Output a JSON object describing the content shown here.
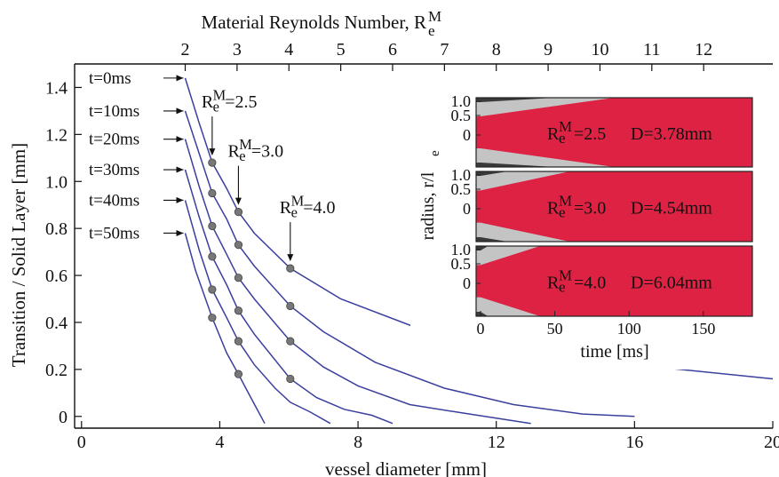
{
  "chart_data": {
    "type": "line",
    "title": "",
    "xlabel": "vessel diameter [mm]",
    "ylabel": "Transition / Solid Layer [mm]",
    "xlim": [
      -0.2,
      20
    ],
    "ylim": [
      -0.05,
      1.5
    ],
    "x_ticks": [
      0,
      4,
      8,
      12,
      16,
      20
    ],
    "x_tick_labels": [
      "0",
      "4",
      "8",
      "12",
      "16",
      "20"
    ],
    "y_ticks": [
      0,
      0.2,
      0.4,
      0.6,
      0.8,
      1.0,
      1.2,
      1.4
    ],
    "y_tick_labels": [
      "0",
      "0.2",
      "0.4",
      "0.6",
      "0.8",
      "1.0",
      "1.2",
      "1.4"
    ],
    "top_axis": {
      "label": "Material Reynolds Number, R",
      "label_sub": "e",
      "label_sup": "M",
      "ticks": [
        2,
        3,
        4,
        5,
        6,
        7,
        8,
        9,
        10,
        11,
        12
      ],
      "tick_labels": [
        "2",
        "3",
        "4",
        "5",
        "6",
        "7",
        "8",
        "9",
        "10",
        "11",
        "12"
      ]
    },
    "series": [
      {
        "name": "t=0ms",
        "x": [
          3.0,
          3.4,
          3.78,
          4.2,
          4.54,
          5.0,
          6.04,
          7.5,
          10.0,
          13.0,
          16.0,
          20.0
        ],
        "y": [
          1.44,
          1.25,
          1.08,
          0.97,
          0.87,
          0.78,
          0.63,
          0.5,
          0.36,
          0.27,
          0.22,
          0.16
        ]
      },
      {
        "name": "t=10ms",
        "x": [
          3.0,
          3.4,
          3.78,
          4.2,
          4.54,
          5.0,
          6.04,
          7.0,
          8.5,
          10.5,
          12.5,
          14.5,
          16.0
        ],
        "y": [
          1.3,
          1.12,
          0.95,
          0.84,
          0.73,
          0.64,
          0.47,
          0.36,
          0.23,
          0.12,
          0.05,
          0.01,
          0.0
        ]
      },
      {
        "name": "t=20ms",
        "x": [
          3.0,
          3.4,
          3.78,
          4.2,
          4.54,
          5.0,
          6.04,
          7.0,
          8.0,
          9.5,
          11.0,
          13.0
        ],
        "y": [
          1.18,
          0.98,
          0.81,
          0.69,
          0.59,
          0.5,
          0.32,
          0.21,
          0.13,
          0.05,
          0.015,
          -0.03
        ]
      },
      {
        "name": "t=30ms",
        "x": [
          3.0,
          3.4,
          3.78,
          4.2,
          4.54,
          5.0,
          6.04,
          6.8,
          7.6,
          8.4,
          9.0
        ],
        "y": [
          1.05,
          0.85,
          0.68,
          0.56,
          0.45,
          0.35,
          0.16,
          0.08,
          0.03,
          0.005,
          -0.03
        ]
      },
      {
        "name": "t=40ms",
        "x": [
          3.0,
          3.4,
          3.78,
          4.2,
          4.54,
          5.0,
          5.6,
          6.04,
          6.6,
          7.2
        ],
        "y": [
          0.92,
          0.71,
          0.54,
          0.42,
          0.32,
          0.22,
          0.12,
          0.06,
          0.02,
          -0.03
        ]
      },
      {
        "name": "t=50ms",
        "x": [
          3.0,
          3.3,
          3.78,
          4.2,
          4.54,
          4.9,
          5.3
        ],
        "y": [
          0.78,
          0.62,
          0.42,
          0.27,
          0.18,
          0.08,
          -0.03
        ]
      }
    ],
    "markers": {
      "color": "#777777",
      "points": [
        [
          3.78,
          1.08
        ],
        [
          3.78,
          0.95
        ],
        [
          3.78,
          0.81
        ],
        [
          3.78,
          0.68
        ],
        [
          3.78,
          0.54
        ],
        [
          3.78,
          0.42
        ],
        [
          4.54,
          0.87
        ],
        [
          4.54,
          0.73
        ],
        [
          4.54,
          0.59
        ],
        [
          4.54,
          0.45
        ],
        [
          4.54,
          0.32
        ],
        [
          4.54,
          0.18
        ],
        [
          6.04,
          0.63
        ],
        [
          6.04,
          0.47
        ],
        [
          6.04,
          0.32
        ],
        [
          6.04,
          0.16
        ]
      ]
    },
    "annotations": [
      {
        "type": "time",
        "text": "t=0ms",
        "y": 1.44
      },
      {
        "type": "time",
        "text": "t=10ms",
        "y": 1.3
      },
      {
        "type": "time",
        "text": "t=20ms",
        "y": 1.18
      },
      {
        "type": "time",
        "text": "t=30ms",
        "y": 1.05
      },
      {
        "type": "time",
        "text": "t=40ms",
        "y": 0.92
      },
      {
        "type": "time",
        "text": "t=50ms",
        "y": 0.78
      },
      {
        "type": "reynolds",
        "base": "R",
        "sub": "e",
        "sup": "M",
        "text": "=2.5",
        "x": 3.78,
        "y": 1.08
      },
      {
        "type": "reynolds",
        "base": "R",
        "sub": "e",
        "sup": "M",
        "text": "=3.0",
        "x": 4.54,
        "y": 0.87
      },
      {
        "type": "reynolds",
        "base": "R",
        "sub": "e",
        "sup": "M",
        "text": "=4.0",
        "x": 6.04,
        "y": 0.63
      }
    ],
    "line_color": "#3b3f9e"
  },
  "inset": {
    "type": "area",
    "xlabel": "time [ms]",
    "ylabel": "radius, r/l",
    "ylabel_sub": "e",
    "xlim": [
      -3,
      183
    ],
    "x_ticks": [
      0,
      50,
      100,
      150
    ],
    "x_tick_labels": [
      "0",
      "50",
      "100",
      "150"
    ],
    "y_tick_labels": [
      "1.0",
      "0.5",
      "0"
    ],
    "colors": {
      "solid": "#dd2244",
      "transition": "#c4c4c4",
      "fluid": "#3a3a3a"
    },
    "panels": [
      {
        "label_base": "R",
        "label_sub": "e",
        "label_sup": "M",
        "label_text": "=2.5",
        "label_d": "D=3.78mm",
        "grey_end": 90,
        "dark_end": 50
      },
      {
        "label_base": "R",
        "label_sub": "e",
        "label_sup": "M",
        "label_text": "=3.0",
        "label_d": "D=4.54mm",
        "grey_end": 60,
        "dark_end": 18
      },
      {
        "label_base": "R",
        "label_sub": "e",
        "label_sup": "M",
        "label_text": "=4.0",
        "label_d": "D=6.04mm",
        "grey_end": 40,
        "dark_end": 5
      }
    ]
  }
}
